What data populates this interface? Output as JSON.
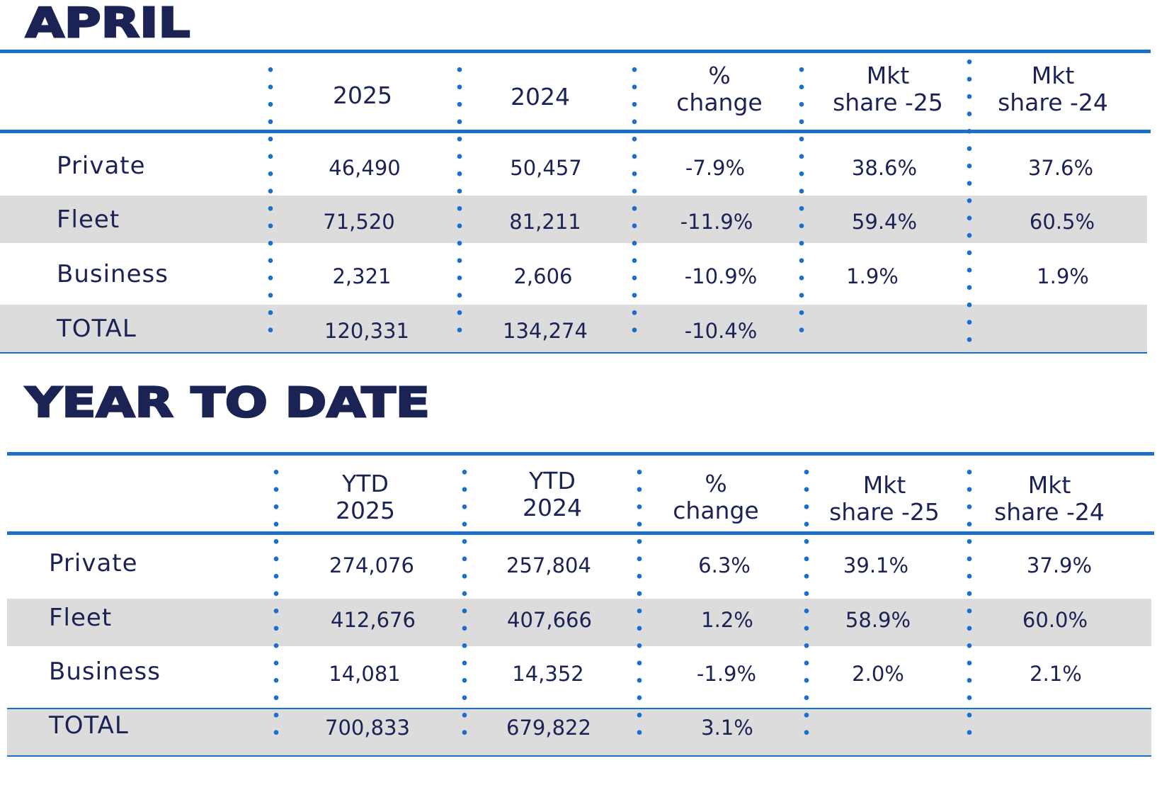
{
  "april": {
    "title": "APRIL",
    "headers": {
      "c2025": "2025",
      "c2024": "2024",
      "pct_line1": "%",
      "pct_line2": "change",
      "mkt25_line1": "Mkt",
      "mkt25_line2": "share -25",
      "mkt24_line1": "Mkt",
      "mkt24_line2": "share -24"
    },
    "rows": [
      {
        "label": "Private",
        "v2025": "46,490",
        "v2024": "50,457",
        "pct": "-7.9%",
        "mkt25": "38.6%",
        "mkt24": "37.6%"
      },
      {
        "label": "Fleet",
        "v2025": "71,520",
        "v2024": "81,211",
        "pct": "-11.9%",
        "mkt25": "59.4%",
        "mkt24": "60.5%"
      },
      {
        "label": "Business",
        "v2025": "2,321",
        "v2024": "2,606",
        "pct": "-10.9%",
        "mkt25": "1.9%",
        "mkt24": "1.9%"
      },
      {
        "label": "TOTAL",
        "v2025": "120,331",
        "v2024": "134,274",
        "pct": "-10.4%",
        "mkt25": "",
        "mkt24": ""
      }
    ]
  },
  "ytd": {
    "title": "YEAR TO DATE",
    "headers": {
      "c2025_line1": "YTD",
      "c2025_line2": "2025",
      "c2024_line1": "YTD",
      "c2024_line2": "2024",
      "pct_line1": "%",
      "pct_line2": "change",
      "mkt25_line1": "Mkt",
      "mkt25_line2": "share -25",
      "mkt24_line1": "Mkt",
      "mkt24_line2": "share -24"
    },
    "rows": [
      {
        "label": "Private",
        "v2025": "274,076",
        "v2024": "257,804",
        "pct": "6.3%",
        "mkt25": "39.1%",
        "mkt24": "37.9%"
      },
      {
        "label": "Fleet",
        "v2025": "412,676",
        "v2024": "407,666",
        "pct": "1.2%",
        "mkt25": "58.9%",
        "mkt24": "60.0%"
      },
      {
        "label": "Business",
        "v2025": "14,081",
        "v2024": "14,352",
        "pct": "-1.9%",
        "mkt25": "2.0%",
        "mkt24": "2.1%"
      },
      {
        "label": "TOTAL",
        "v2025": "700,833",
        "v2024": "679,822",
        "pct": "3.1%",
        "mkt25": "",
        "mkt24": ""
      }
    ]
  },
  "colors": {
    "navy": "#1b2354",
    "accent_blue": "#1b6fc9",
    "band_gray": "#dcdcdc"
  }
}
